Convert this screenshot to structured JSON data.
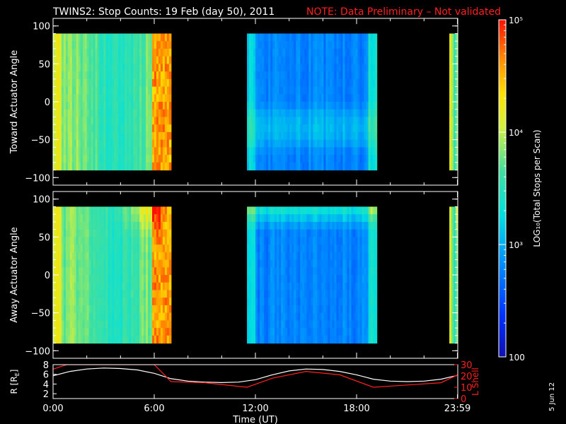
{
  "header": {
    "title": "TWINS2: Stop Counts: 19 Feb (day  50), 2011",
    "note": "NOTE: Data Preliminary – Not validated"
  },
  "footer": {
    "date_stamp": "5 Jun 12"
  },
  "colors": {
    "note": "#ff2020",
    "r_line": "#ffffff",
    "lshell_line": "#ff2020"
  },
  "chart_data": [
    {
      "type": "heatmap",
      "ylabel": "Toward Actuator Angle",
      "ylim": [
        -110,
        110
      ],
      "yticks": [
        "100",
        "50",
        "0",
        "−50",
        "−100"
      ],
      "ytick_values": [
        100,
        50,
        0,
        -50,
        -100
      ],
      "xlim": [
        0,
        24
      ],
      "angle_range": [
        -90,
        90
      ],
      "data_blocks": [
        {
          "start_hr": 0.0,
          "end_hr": 7.0,
          "level": "high"
        },
        {
          "start_hr": 11.5,
          "end_hr": 19.2,
          "level": "low"
        },
        {
          "start_hr": 23.5,
          "end_hr": 24.0,
          "level": "high"
        }
      ]
    },
    {
      "type": "heatmap",
      "ylabel": "Away Actuator Angle",
      "ylim": [
        -110,
        110
      ],
      "yticks": [
        "100",
        "50",
        "0",
        "−50",
        "−100"
      ],
      "ytick_values": [
        100,
        50,
        0,
        -50,
        -100
      ],
      "xlim": [
        0,
        24
      ],
      "angle_range": [
        -90,
        90
      ],
      "data_blocks": [
        {
          "start_hr": 0.0,
          "end_hr": 7.0,
          "level": "high"
        },
        {
          "start_hr": 11.5,
          "end_hr": 19.2,
          "level": "low"
        },
        {
          "start_hr": 23.5,
          "end_hr": 24.0,
          "level": "high"
        }
      ]
    },
    {
      "type": "line",
      "ylabel_left": "R [R",
      "ylabel_left_sub": "E",
      "ylabel_left_end": "]",
      "ylabel_right": "L Shell",
      "left_ylim": [
        1,
        8
      ],
      "left_yticks": [
        "8",
        "6",
        "4",
        "2"
      ],
      "left_ytick_values": [
        8,
        6,
        4,
        2
      ],
      "right_ylim": [
        0,
        30
      ],
      "right_yticks": [
        "30",
        "20",
        "10",
        "0"
      ],
      "right_ytick_values": [
        30,
        20,
        10,
        0
      ],
      "xlabel": "Time (UT)",
      "xlim": [
        0,
        24
      ],
      "xticks": [
        "0:00",
        "6:00",
        "12:00",
        "18:00",
        "23:59"
      ],
      "xtick_values": [
        0,
        6,
        12,
        18,
        23.98
      ],
      "series": [
        {
          "axis": "left",
          "x": [
            0,
            1,
            2,
            3,
            4,
            5,
            6,
            7,
            8,
            9,
            10,
            11,
            12,
            13,
            14,
            15,
            16,
            17,
            18,
            19,
            20,
            21,
            22,
            23,
            24
          ],
          "values": [
            5.7,
            6.6,
            7.1,
            7.3,
            7.2,
            6.9,
            6.2,
            5.1,
            4.6,
            4.4,
            4.3,
            4.4,
            4.9,
            5.9,
            6.7,
            7.1,
            7.0,
            6.6,
            5.9,
            5.0,
            4.6,
            4.5,
            4.6,
            5.0,
            5.8
          ]
        },
        {
          "axis": "right",
          "x": [
            0,
            0.8,
            6.0,
            7.0,
            9.0,
            11.5,
            13.0,
            15.0,
            17.0,
            19.0,
            21.0,
            23.0,
            24.0
          ],
          "values": [
            26,
            30,
            30,
            15,
            14,
            10,
            18,
            24,
            21,
            10,
            12,
            14,
            21
          ]
        }
      ]
    },
    {
      "type": "heatmap",
      "colorbar": true,
      "ylabel": "LOG₁₀(Total Stops per Scan)",
      "ylim": [
        100,
        100000
      ],
      "scale": "log",
      "ticks": [
        "10⁵",
        "10⁴",
        "10³",
        "100"
      ],
      "tick_values": [
        100000,
        10000,
        1000,
        100
      ]
    }
  ]
}
